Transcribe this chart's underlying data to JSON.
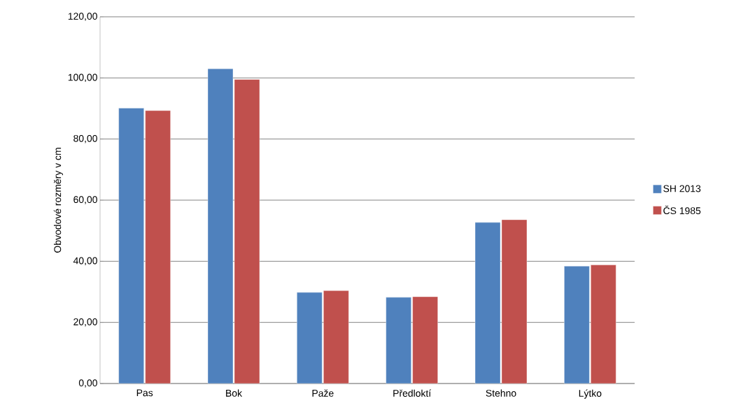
{
  "chart_data": {
    "type": "bar",
    "ylabel": "Obvodové rozměry v cm",
    "categories": [
      "Pas",
      "Bok",
      "Paže",
      "Předloktí",
      "Stehno",
      "Lýtko"
    ],
    "series": [
      {
        "name": "SH 2013",
        "color": "#4f81bd",
        "values": [
          90.1,
          103.0,
          29.8,
          28.2,
          52.7,
          38.4
        ]
      },
      {
        "name": "ČS 1985",
        "color": "#c0504d",
        "values": [
          89.3,
          99.5,
          30.4,
          28.4,
          53.6,
          38.8
        ]
      }
    ],
    "ylim": [
      0,
      120
    ],
    "yticks": [
      {
        "value": 0,
        "label": "0,00"
      },
      {
        "value": 20,
        "label": "20,00"
      },
      {
        "value": 40,
        "label": "40,00"
      },
      {
        "value": 60,
        "label": "60,00"
      },
      {
        "value": 80,
        "label": "80,00"
      },
      {
        "value": 100,
        "label": "100,00"
      },
      {
        "value": 120,
        "label": "120,00"
      }
    ],
    "grid": "y",
    "legend": "right"
  }
}
